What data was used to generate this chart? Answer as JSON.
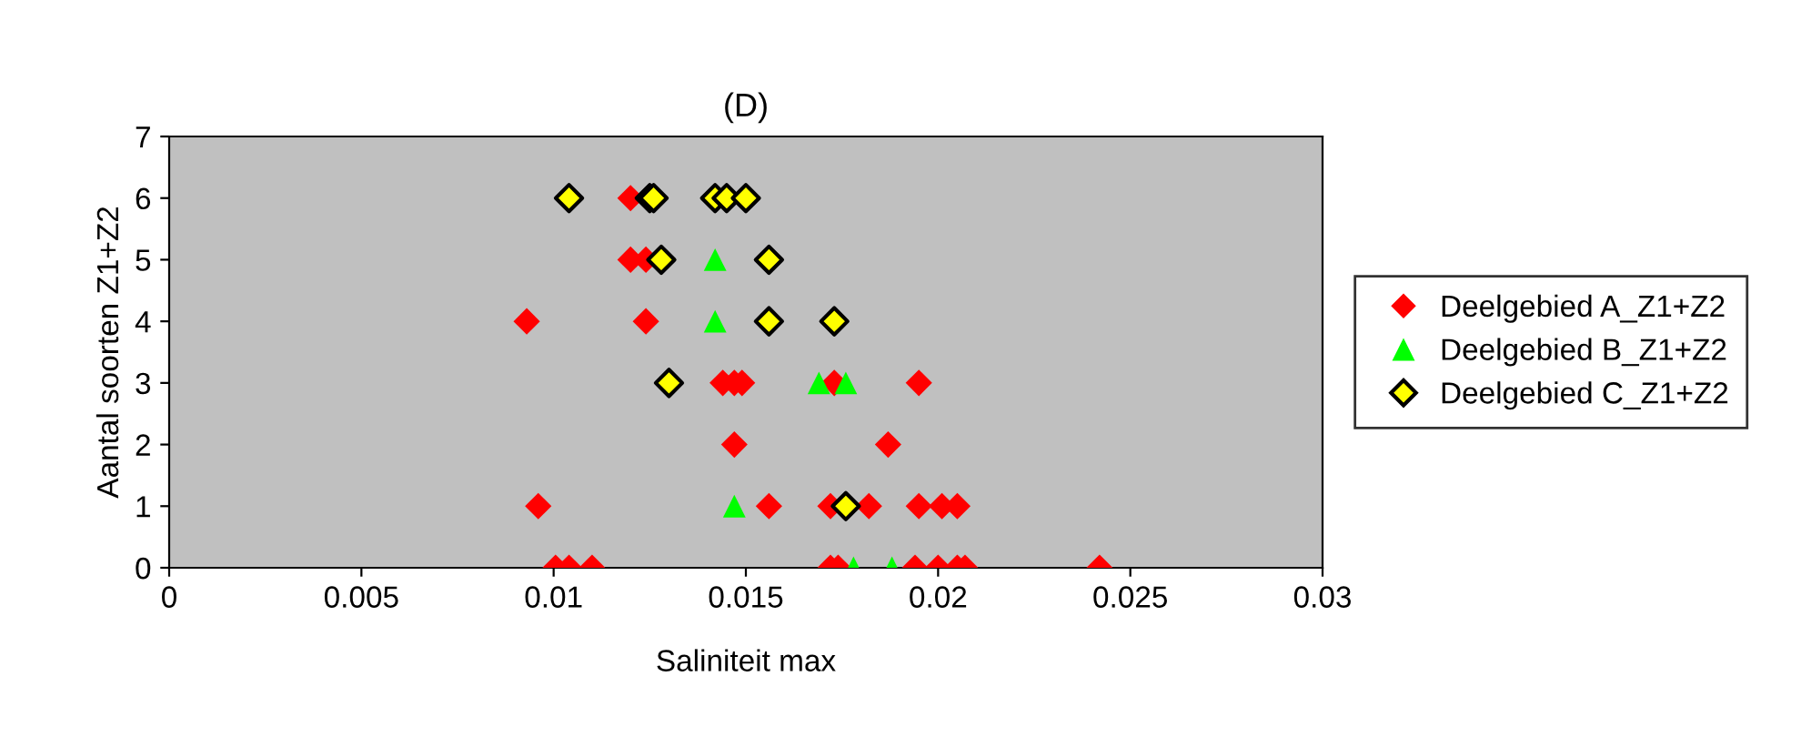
{
  "chart_data": {
    "type": "scatter",
    "title": "(D)",
    "xlabel": "Saliniteit max",
    "ylabel": "Aantal soorten Z1+Z2",
    "xlim": [
      0,
      0.03
    ],
    "xticks": [
      {
        "value": 0,
        "label": "0"
      },
      0.005,
      0.01,
      0.015,
      0.02,
      0.025,
      0.03
    ],
    "ylim": [
      0,
      7
    ],
    "yticks": [
      0,
      1,
      2,
      3,
      4,
      5,
      6,
      7
    ],
    "grid": false,
    "legend": "right",
    "series": [
      {
        "name": "Deelgebied A_Z1+Z2",
        "color": "#ff0000",
        "marker": "diamond",
        "x": [
          0.01005,
          0.0104,
          0.011,
          0.0172,
          0.0174,
          0.0194,
          0.02,
          0.0205,
          0.0207,
          0.0242,
          0.0096,
          0.0156,
          0.0172,
          0.0182,
          0.0195,
          0.0201,
          0.0205,
          0.0147,
          0.0187,
          0.0144,
          0.0147,
          0.0149,
          0.0173,
          0.0195,
          0.0093,
          0.0124,
          0.012,
          0.0124,
          0.012
        ],
        "values": [
          0,
          0,
          0,
          0,
          0,
          0,
          0,
          0,
          0,
          0,
          1,
          1,
          1,
          1,
          1,
          1,
          1,
          2,
          2,
          3,
          3,
          3,
          3,
          3,
          4,
          4,
          5,
          5,
          6
        ]
      },
      {
        "name": "Deelgebied B_Z1+Z2",
        "color": "#00ff00",
        "marker": "triangle",
        "x": [
          0.0178,
          0.0188,
          0.0147,
          0.0169,
          0.0176,
          0.0142,
          0.0142
        ],
        "values": [
          0,
          0,
          1,
          3,
          3,
          4,
          5
        ]
      },
      {
        "name": "Deelgebied C_Z1+Z2",
        "color": "#ffff00",
        "marker": "diamond",
        "x": [
          0.0176,
          0.013,
          0.0156,
          0.0173,
          0.0128,
          0.0156,
          0.0104,
          0.0125,
          0.0126,
          0.0142,
          0.0145,
          0.015
        ],
        "values": [
          1,
          3,
          4,
          4,
          5,
          5,
          6,
          6,
          6,
          6,
          6,
          6
        ]
      }
    ]
  }
}
